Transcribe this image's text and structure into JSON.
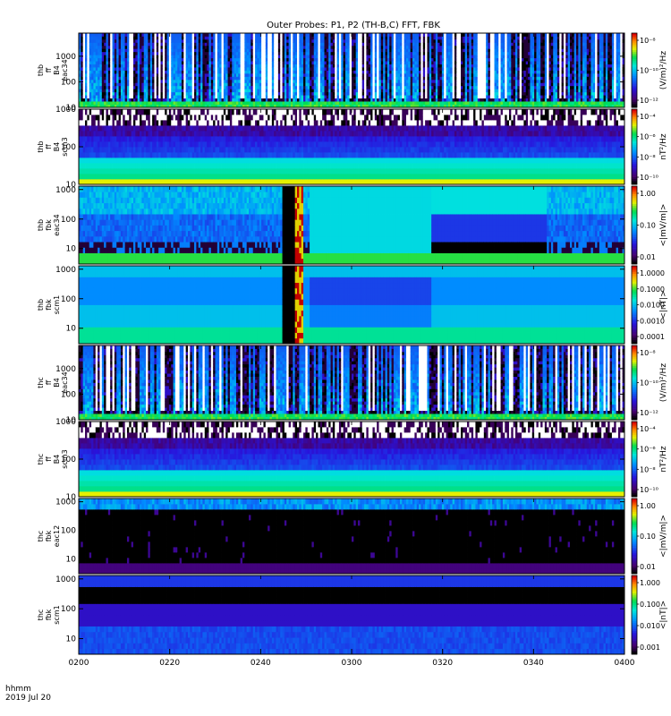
{
  "title": "Outer Probes: P1, P2 (TH-B,C) FFT, FBK",
  "footer": {
    "line1": "hhmm",
    "line2": "2019 Jul 20"
  },
  "chart_data": {
    "type": "heatmap",
    "x": {
      "ticks": [
        "0200",
        "0220",
        "0240",
        "0300",
        "0320",
        "0340",
        "0400"
      ],
      "range": [
        "0200",
        "0400"
      ]
    },
    "panels": [
      {
        "id": "thb-ff-eac34",
        "ylabel": [
          "thb",
          "ff",
          "B4",
          "eac34"
        ],
        "yticks": [
          "10",
          "100",
          "1000"
        ],
        "ylim": [
          10,
          8000
        ],
        "yscale": "log",
        "colorbar": {
          "ticks": [
            "10⁻⁸",
            "10⁻¹⁰",
            "10⁻¹²"
          ],
          "label": "(V/m)²/Hz",
          "range": [
            1e-13,
            1e-07
          ]
        },
        "style": "spiky"
      },
      {
        "id": "thb-ff-scm3",
        "ylabel": [
          "thb",
          "ff",
          "B4",
          "scm3"
        ],
        "yticks": [
          "10",
          "100",
          "1000"
        ],
        "ylim": [
          10,
          1000
        ],
        "yscale": "log",
        "colorbar": {
          "ticks": [
            "10⁻⁴",
            "10⁻⁶",
            "10⁻⁸",
            "10⁻¹⁰"
          ],
          "label": "nT²/Hz",
          "range": [
            1e-10,
            0.001
          ]
        },
        "style": "banded"
      },
      {
        "id": "thb-fbk-eac34",
        "ylabel": [
          "thb",
          "fbk",
          "eac34"
        ],
        "yticks": [
          "10",
          "100",
          "1000"
        ],
        "ylim": [
          3,
          1300
        ],
        "yscale": "log",
        "colorbar": {
          "ticks": [
            "1.00",
            "0.10",
            "0.01"
          ],
          "label": "<|mV/m|>",
          "range": [
            0.004,
            1.5
          ]
        },
        "style": "fbk-e",
        "gap": {
          "start": "0245",
          "end": "0249"
        }
      },
      {
        "id": "thb-fbk-scm1",
        "ylabel": [
          "thb",
          "fbk",
          "scm1"
        ],
        "yticks": [
          "10",
          "100",
          "1000"
        ],
        "ylim": [
          3,
          1300
        ],
        "yscale": "log",
        "colorbar": {
          "ticks": [
            "1.0000",
            "0.1000",
            "0.0100",
            "0.0010",
            "0.0001"
          ],
          "label": "<|nT|>",
          "range": [
            4e-05,
            1.5
          ]
        },
        "style": "fbk-b",
        "gap": {
          "start": "0245",
          "end": "0249"
        }
      },
      {
        "id": "thc-ff-eac34",
        "ylabel": [
          "thc",
          "ff",
          "B4",
          "eac34"
        ],
        "yticks": [
          "10",
          "100",
          "1000"
        ],
        "ylim": [
          10,
          8000
        ],
        "yscale": "log",
        "colorbar": {
          "ticks": [
            "10⁻⁸",
            "10⁻¹⁰",
            "10⁻¹²"
          ],
          "label": "(V/m)²/Hz",
          "range": [
            1e-13,
            1e-07
          ]
        },
        "style": "spiky"
      },
      {
        "id": "thc-ff-scm3",
        "ylabel": [
          "thc",
          "ff",
          "B4",
          "scm3"
        ],
        "yticks": [
          "10",
          "100",
          "1000"
        ],
        "ylim": [
          10,
          1000
        ],
        "yscale": "log",
        "colorbar": {
          "ticks": [
            "10⁻⁴",
            "10⁻⁶",
            "10⁻⁸",
            "10⁻¹⁰"
          ],
          "label": "nT²/Hz",
          "range": [
            1e-10,
            0.001
          ]
        },
        "style": "banded"
      },
      {
        "id": "thc-fbk-eac12",
        "ylabel": [
          "thc",
          "fbk",
          "eac12"
        ],
        "yticks": [
          "10",
          "100",
          "1000"
        ],
        "ylim": [
          3,
          1300
        ],
        "yscale": "log",
        "colorbar": {
          "ticks": [
            "1.00",
            "0.10",
            "0.01"
          ],
          "label": "<|mV/m|>",
          "range": [
            0.004,
            1.5
          ]
        },
        "style": "dark-e"
      },
      {
        "id": "thc-fbk-scm1",
        "ylabel": [
          "thc",
          "fbk",
          "scm1"
        ],
        "yticks": [
          "10",
          "100",
          "1000"
        ],
        "ylim": [
          3,
          1300
        ],
        "yscale": "log",
        "colorbar": {
          "ticks": [
            "1.000",
            "0.100",
            "0.010",
            "0.001"
          ],
          "label": "<|nT|>",
          "range": [
            0.0007,
            1.5
          ]
        },
        "style": "dark-b"
      }
    ]
  }
}
